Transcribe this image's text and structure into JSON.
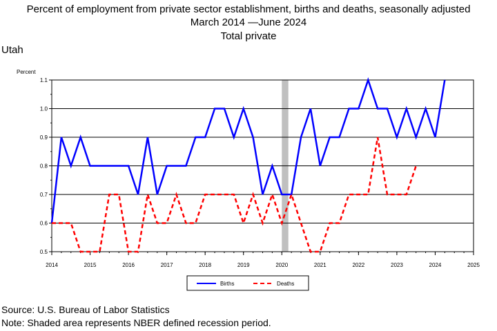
{
  "title_lines": [
    "Percent of employment from private sector establishment, births and deaths, seasonally adjusted",
    "March 2014 —June 2024",
    "Total private"
  ],
  "region": "Utah",
  "footer": {
    "source": "Source: U.S. Bureau of Labor Statistics",
    "note": "Note: Shaded area represents NBER defined recession period."
  },
  "chart_data": {
    "type": "line",
    "ylabel": "Percent",
    "xlabel": "",
    "xlim": [
      2014,
      2025
    ],
    "ylim": [
      0.5,
      1.1
    ],
    "x_ticks": [
      "2014",
      "2015",
      "2016",
      "2017",
      "2018",
      "2019",
      "2020",
      "2021",
      "2022",
      "2023",
      "2024",
      "2025"
    ],
    "y_ticks": [
      "0.5",
      "0.6",
      "0.7",
      "0.8",
      "0.9",
      "1.0",
      "1.1"
    ],
    "grid": "horizontal",
    "legend": "bottom-center",
    "recession": {
      "start": 2020.0,
      "end": 2020.17,
      "color": "#c0c0c0"
    },
    "x": [
      2014.0,
      2014.25,
      2014.5,
      2014.75,
      2015.0,
      2015.25,
      2015.5,
      2015.75,
      2016.0,
      2016.25,
      2016.5,
      2016.75,
      2017.0,
      2017.25,
      2017.5,
      2017.75,
      2018.0,
      2018.25,
      2018.5,
      2018.75,
      2019.0,
      2019.25,
      2019.5,
      2019.75,
      2020.0,
      2020.25,
      2020.5,
      2020.75,
      2021.0,
      2021.25,
      2021.5,
      2021.75,
      2022.0,
      2022.25,
      2022.5,
      2022.75,
      2023.0,
      2023.25,
      2023.5,
      2023.75,
      2024.0,
      2024.25
    ],
    "series": [
      {
        "name": "Births",
        "color": "#0000ff",
        "dash": "solid",
        "values": [
          0.6,
          0.9,
          0.8,
          0.9,
          0.8,
          0.8,
          0.8,
          0.8,
          0.8,
          0.7,
          0.9,
          0.7,
          0.8,
          0.8,
          0.8,
          0.9,
          0.9,
          1.0,
          1.0,
          0.9,
          1.0,
          0.9,
          0.7,
          0.8,
          0.7,
          0.7,
          0.9,
          1.0,
          0.8,
          0.9,
          0.9,
          1.0,
          1.0,
          1.1,
          1.0,
          1.0,
          0.9,
          1.0,
          0.9,
          1.0,
          0.9,
          1.1
        ]
      },
      {
        "name": "Deaths",
        "color": "#ff0000",
        "dash": "dashed",
        "values": [
          0.6,
          0.6,
          0.6,
          0.5,
          0.5,
          0.5,
          0.7,
          0.7,
          0.5,
          0.5,
          0.7,
          0.6,
          0.6,
          0.7,
          0.6,
          0.6,
          0.7,
          0.7,
          0.7,
          0.7,
          0.6,
          0.7,
          0.6,
          0.7,
          0.6,
          0.7,
          0.6,
          0.5,
          0.5,
          0.6,
          0.6,
          0.7,
          0.7,
          0.7,
          0.9,
          0.7,
          0.7,
          0.7,
          0.8,
          null,
          null,
          null
        ]
      }
    ]
  }
}
